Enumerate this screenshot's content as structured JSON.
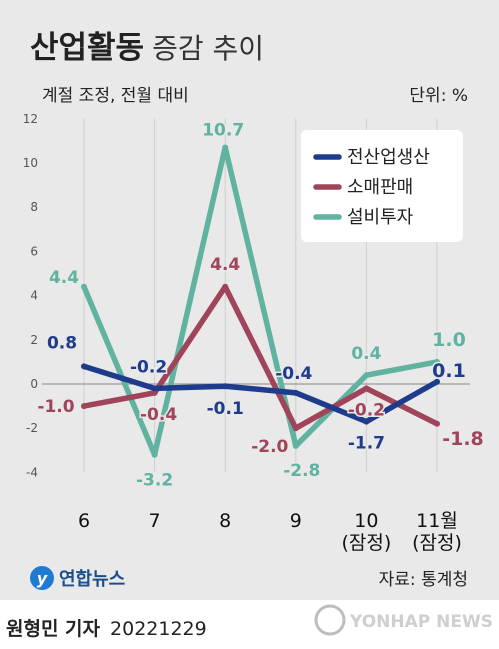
{
  "title": {
    "main": "산업활동",
    "sub": "증감 추이"
  },
  "subtitle": "계절 조정, 전월 대비",
  "unit": "단위: %",
  "source": "자료: 통계청",
  "brand": {
    "logo": "연합뉴스",
    "watermark": "YONHAP NEWS"
  },
  "footer": {
    "reporter": "원형민 기자",
    "date": "20221229"
  },
  "colors": {
    "전산업생산": "#1f3b8c",
    "소매판매": "#a04459",
    "설비투자": "#5fb3a0",
    "background": "#e9e9e9"
  },
  "chart_data": {
    "type": "line",
    "categories": [
      "6",
      "7",
      "8",
      "9",
      "10\n(잠정)",
      "11월\n(잠정)"
    ],
    "ylim": [
      -4,
      12
    ],
    "yticks": [
      "12",
      "10",
      "8",
      "6",
      "4",
      "2",
      "0",
      "-2",
      "-4"
    ],
    "grid": true,
    "legend": "top-right",
    "series": [
      {
        "name": "전산업생산",
        "values": [
          0.8,
          -0.2,
          -0.1,
          -0.4,
          -1.7,
          0.1
        ],
        "labels": [
          "0.8",
          "-0.2",
          "-0.1",
          "-0.4",
          "-1.7",
          "0.1"
        ]
      },
      {
        "name": "소매판매",
        "values": [
          -1.0,
          -0.4,
          4.4,
          -2.0,
          -0.2,
          -1.8
        ],
        "labels": [
          "-1.0",
          "-0.4",
          "4.4",
          "-2.0",
          "-0.2",
          "-1.8"
        ]
      },
      {
        "name": "설비투자",
        "values": [
          4.4,
          -3.2,
          10.7,
          -2.8,
          0.4,
          1.0
        ],
        "labels": [
          "4.4",
          "-3.2",
          "10.7",
          "-2.8",
          "0.4",
          "1.0"
        ]
      }
    ]
  }
}
